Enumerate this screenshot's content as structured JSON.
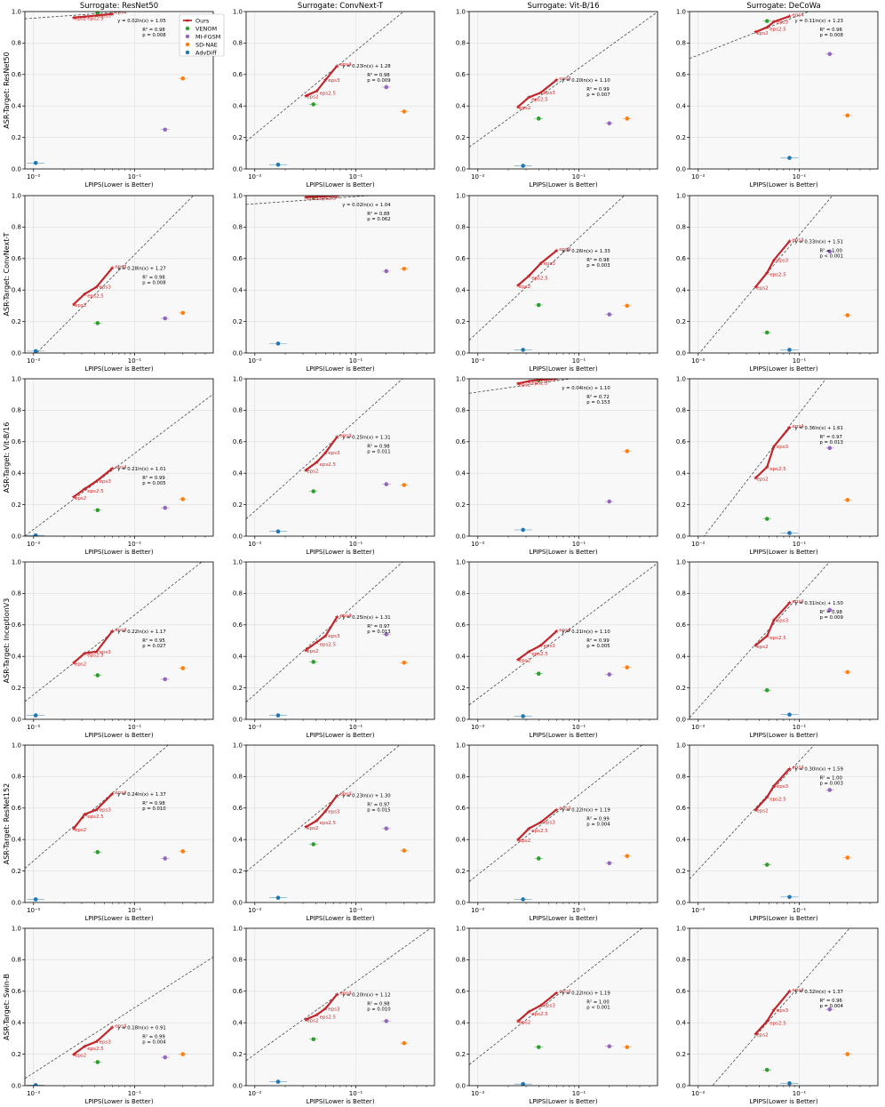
{
  "figure": {
    "xlabel": "LPIPS(Lower is Better)",
    "x_scale": "log",
    "xlim": [
      0.0082,
      0.6
    ],
    "ylim": [
      0,
      1.0
    ],
    "y_ticks": [
      "0.0",
      "0.2",
      "0.4",
      "0.6",
      "0.8",
      "1.0"
    ],
    "x_tick_label": "10⁻²",
    "x_tick_label_2": "10⁻¹",
    "grid": true,
    "legend_location": "top-right of first panel",
    "legend": [
      {
        "name": "Ours",
        "color": "#c0262b",
        "marker": "star-line"
      },
      {
        "name": "VENOM",
        "color": "#2ca02c",
        "marker": "circle"
      },
      {
        "name": "MI-FGSM",
        "color": "#9467bd",
        "marker": "circle"
      },
      {
        "name": "SD-NAE",
        "color": "#ff7f0e",
        "marker": "circle"
      },
      {
        "name": "AdvDiff",
        "color": "#1f77b4",
        "marker": "circle"
      }
    ],
    "column_titles": [
      "Surrogate: ResNet50",
      "Surrogate: ConvNext-T",
      "Surrogate: Vit-B/16",
      "Surrogate: DeCoWa"
    ],
    "row_labels": [
      "ASR-Target: ResNet50",
      "ASR-Target: ConvNext-T",
      "ASR-Target: Vit-B/16",
      "ASR-Target: InceptionV3",
      "ASR-Target: ResNet152",
      "ASR-Target: Swin-B"
    ],
    "eps_labels": [
      "eps2",
      "eps2.5",
      "eps3",
      "eps4"
    ]
  },
  "chart_data": [
    {
      "type": "scatter",
      "row": 0,
      "col": 0,
      "ours_x": [
        0.025,
        0.032,
        0.042,
        0.06
      ],
      "ours_y": [
        0.962,
        0.968,
        0.975,
        0.985
      ],
      "fit": {
        "slope": 0.02,
        "intercept": 1.05,
        "equation": "y = 0.02ln(x) + 1.05",
        "r2": "R² = 0.98",
        "p": "p = 0.008"
      },
      "points": {
        "VENOM": [
          0.043,
          0.99
        ],
        "MI-FGSM": [
          0.2,
          0.25
        ],
        "SD-NAE": [
          0.3,
          0.575
        ],
        "AdvDiff": [
          0.0105,
          0.038
        ]
      }
    },
    {
      "type": "scatter",
      "row": 0,
      "col": 1,
      "ours_x": [
        0.032,
        0.041,
        0.05,
        0.065
      ],
      "ours_y": [
        0.465,
        0.495,
        0.565,
        0.655
      ],
      "fit": {
        "slope": 0.23,
        "intercept": 1.28,
        "equation": "y = 0.23ln(x) + 1.28",
        "r2": "R² = 0.98",
        "p": "p = 0.009"
      },
      "points": {
        "VENOM": [
          0.038,
          0.41
        ],
        "MI-FGSM": [
          0.2,
          0.52
        ],
        "SD-NAE": [
          0.3,
          0.365
        ],
        "AdvDiff": [
          0.017,
          0.027
        ]
      }
    },
    {
      "type": "scatter",
      "row": 0,
      "col": 2,
      "ours_x": [
        0.025,
        0.032,
        0.042,
        0.06
      ],
      "ours_y": [
        0.395,
        0.455,
        0.485,
        0.565
      ],
      "fit": {
        "slope": 0.2,
        "intercept": 1.1,
        "equation": "y = 0.20ln(x) + 1.10",
        "r2": "R² = 0.99",
        "p": "p = 0.007"
      },
      "points": {
        "VENOM": [
          0.04,
          0.32
        ],
        "MI-FGSM": [
          0.2,
          0.29
        ],
        "SD-NAE": [
          0.3,
          0.32
        ],
        "AdvDiff": [
          0.028,
          0.02
        ]
      }
    },
    {
      "type": "scatter",
      "row": 0,
      "col": 3,
      "ours_x": [
        0.037,
        0.048,
        0.056,
        0.08
      ],
      "ours_y": [
        0.87,
        0.9,
        0.935,
        0.97
      ],
      "fit": {
        "slope": 0.11,
        "intercept": 1.23,
        "equation": "y = 0.11ln(x) + 1.23",
        "r2": "R² = 0.96",
        "p": "p = 0.008"
      },
      "points": {
        "VENOM": [
          0.048,
          0.94
        ],
        "MI-FGSM": [
          0.2,
          0.73
        ],
        "SD-NAE": [
          0.3,
          0.34
        ],
        "AdvDiff": [
          0.08,
          0.07
        ]
      }
    },
    {
      "type": "scatter",
      "row": 1,
      "col": 0,
      "ours_x": [
        0.025,
        0.032,
        0.042,
        0.06
      ],
      "ours_y": [
        0.31,
        0.375,
        0.42,
        0.54
      ],
      "fit": {
        "slope": 0.28,
        "intercept": 1.27,
        "equation": "y = 0.28ln(x) + 1.27",
        "r2": "R² = 0.98",
        "p": "p = 0.008"
      },
      "points": {
        "VENOM": [
          0.043,
          0.19
        ],
        "MI-FGSM": [
          0.2,
          0.22
        ],
        "SD-NAE": [
          0.3,
          0.255
        ],
        "AdvDiff": [
          0.0105,
          0.012
        ]
      }
    },
    {
      "type": "scatter",
      "row": 1,
      "col": 1,
      "ours_x": [
        0.032,
        0.041,
        0.05,
        0.065
      ],
      "ours_y": [
        0.99,
        0.993,
        0.996,
        1.0
      ],
      "fit": {
        "slope": 0.02,
        "intercept": 1.04,
        "equation": "y = 0.02ln(x) + 1.04",
        "r2": "R² = 0.88",
        "p": "p = 0.062"
      },
      "points": {
        "VENOM": [
          0.038,
          0.99
        ],
        "MI-FGSM": [
          0.2,
          0.52
        ],
        "SD-NAE": [
          0.3,
          0.535
        ],
        "AdvDiff": [
          0.017,
          0.06
        ]
      }
    },
    {
      "type": "scatter",
      "row": 1,
      "col": 2,
      "ours_x": [
        0.025,
        0.032,
        0.042,
        0.06
      ],
      "ours_y": [
        0.43,
        0.49,
        0.57,
        0.65
      ],
      "fit": {
        "slope": 0.26,
        "intercept": 1.33,
        "equation": "y = 0.26ln(x) + 1.33",
        "r2": "R² = 0.98",
        "p": "p = 0.003"
      },
      "points": {
        "VENOM": [
          0.04,
          0.305
        ],
        "MI-FGSM": [
          0.2,
          0.245
        ],
        "SD-NAE": [
          0.3,
          0.3
        ],
        "AdvDiff": [
          0.028,
          0.02
        ]
      }
    },
    {
      "type": "scatter",
      "row": 1,
      "col": 3,
      "ours_x": [
        0.037,
        0.048,
        0.056,
        0.08
      ],
      "ours_y": [
        0.42,
        0.51,
        0.59,
        0.71
      ],
      "fit": {
        "slope": 0.33,
        "intercept": 1.51,
        "equation": "y = 0.33ln(x) + 1.51",
        "r2": "R² = 1.00",
        "p": "p < 0.001"
      },
      "points": {
        "VENOM": [
          0.048,
          0.13
        ],
        "MI-FGSM": [
          0.2,
          0.645
        ],
        "SD-NAE": [
          0.3,
          0.24
        ],
        "AdvDiff": [
          0.08,
          0.02
        ]
      }
    },
    {
      "type": "scatter",
      "row": 2,
      "col": 0,
      "ours_x": [
        0.025,
        0.032,
        0.042,
        0.06
      ],
      "ours_y": [
        0.25,
        0.3,
        0.35,
        0.43
      ],
      "fit": {
        "slope": 0.21,
        "intercept": 1.01,
        "equation": "y = 0.21ln(x) + 1.01",
        "r2": "R² = 0.99",
        "p": "p = 0.005"
      },
      "points": {
        "VENOM": [
          0.043,
          0.165
        ],
        "MI-FGSM": [
          0.2,
          0.18
        ],
        "SD-NAE": [
          0.3,
          0.235
        ],
        "AdvDiff": [
          0.0105,
          0.005
        ]
      }
    },
    {
      "type": "scatter",
      "row": 2,
      "col": 1,
      "ours_x": [
        0.032,
        0.041,
        0.05,
        0.065
      ],
      "ours_y": [
        0.42,
        0.47,
        0.53,
        0.63
      ],
      "fit": {
        "slope": 0.25,
        "intercept": 1.31,
        "equation": "y = 0.25ln(x) + 1.31",
        "r2": "R² = 0.98",
        "p": "p = 0.011"
      },
      "points": {
        "VENOM": [
          0.038,
          0.285
        ],
        "MI-FGSM": [
          0.2,
          0.33
        ],
        "SD-NAE": [
          0.3,
          0.325
        ],
        "AdvDiff": [
          0.017,
          0.03
        ]
      }
    },
    {
      "type": "scatter",
      "row": 2,
      "col": 2,
      "ours_x": [
        0.025,
        0.032,
        0.042,
        0.06
      ],
      "ours_y": [
        0.97,
        0.985,
        0.995,
        1.0
      ],
      "fit": {
        "slope": 0.04,
        "intercept": 1.1,
        "equation": "y = 0.04ln(x) + 1.10",
        "r2": "R² = 0.72",
        "p": "p = 0.153"
      },
      "points": {
        "VENOM": [
          0.04,
          0.99
        ],
        "MI-FGSM": [
          0.2,
          0.22
        ],
        "SD-NAE": [
          0.3,
          0.54
        ],
        "AdvDiff": [
          0.028,
          0.04
        ]
      }
    },
    {
      "type": "scatter",
      "row": 2,
      "col": 3,
      "ours_x": [
        0.037,
        0.048,
        0.056,
        0.08
      ],
      "ours_y": [
        0.37,
        0.44,
        0.57,
        0.69
      ],
      "fit": {
        "slope": 0.36,
        "intercept": 1.61,
        "equation": "y = 0.36ln(x) + 1.61",
        "r2": "R² = 0.97",
        "p": "p = 0.013"
      },
      "points": {
        "VENOM": [
          0.048,
          0.11
        ],
        "MI-FGSM": [
          0.2,
          0.56
        ],
        "SD-NAE": [
          0.3,
          0.23
        ],
        "AdvDiff": [
          0.08,
          0.02
        ]
      }
    },
    {
      "type": "scatter",
      "row": 3,
      "col": 0,
      "ours_x": [
        0.025,
        0.032,
        0.042,
        0.06
      ],
      "ours_y": [
        0.36,
        0.42,
        0.43,
        0.56
      ],
      "fit": {
        "slope": 0.22,
        "intercept": 1.17,
        "equation": "y = 0.22ln(x) + 1.17",
        "r2": "R² = 0.95",
        "p": "p = 0.027"
      },
      "points": {
        "VENOM": [
          0.043,
          0.28
        ],
        "MI-FGSM": [
          0.2,
          0.255
        ],
        "SD-NAE": [
          0.3,
          0.325
        ],
        "AdvDiff": [
          0.0105,
          0.025
        ]
      }
    },
    {
      "type": "scatter",
      "row": 3,
      "col": 1,
      "ours_x": [
        0.032,
        0.041,
        0.05,
        0.065
      ],
      "ours_y": [
        0.44,
        0.49,
        0.53,
        0.65
      ],
      "fit": {
        "slope": 0.25,
        "intercept": 1.31,
        "equation": "y = 0.25ln(x) + 1.31",
        "r2": "R² = 0.97",
        "p": "p = 0.013"
      },
      "points": {
        "VENOM": [
          0.038,
          0.365
        ],
        "MI-FGSM": [
          0.2,
          0.54
        ],
        "SD-NAE": [
          0.3,
          0.36
        ],
        "AdvDiff": [
          0.017,
          0.025
        ]
      }
    },
    {
      "type": "scatter",
      "row": 3,
      "col": 2,
      "ours_x": [
        0.025,
        0.032,
        0.042,
        0.06
      ],
      "ours_y": [
        0.38,
        0.43,
        0.47,
        0.56
      ],
      "fit": {
        "slope": 0.21,
        "intercept": 1.1,
        "equation": "y = 0.21ln(x) + 1.10",
        "r2": "R² = 0.99",
        "p": "p = 0.005"
      },
      "points": {
        "VENOM": [
          0.04,
          0.29
        ],
        "MI-FGSM": [
          0.2,
          0.285
        ],
        "SD-NAE": [
          0.3,
          0.33
        ],
        "AdvDiff": [
          0.028,
          0.02
        ]
      }
    },
    {
      "type": "scatter",
      "row": 3,
      "col": 3,
      "ours_x": [
        0.037,
        0.048,
        0.056,
        0.08
      ],
      "ours_y": [
        0.47,
        0.53,
        0.63,
        0.74
      ],
      "fit": {
        "slope": 0.31,
        "intercept": 1.5,
        "equation": "y = 0.31ln(x) + 1.50",
        "r2": "R² = 0.98",
        "p": "p = 0.009"
      },
      "points": {
        "VENOM": [
          0.048,
          0.185
        ],
        "MI-FGSM": [
          0.2,
          0.695
        ],
        "SD-NAE": [
          0.3,
          0.3
        ],
        "AdvDiff": [
          0.08,
          0.03
        ]
      }
    },
    {
      "type": "scatter",
      "row": 4,
      "col": 0,
      "ours_x": [
        0.025,
        0.032,
        0.042,
        0.06
      ],
      "ours_y": [
        0.47,
        0.56,
        0.59,
        0.69
      ],
      "fit": {
        "slope": 0.24,
        "intercept": 1.37,
        "equation": "y = 0.24ln(x) + 1.37",
        "r2": "R² = 0.98",
        "p": "p = 0.010"
      },
      "points": {
        "VENOM": [
          0.043,
          0.32
        ],
        "MI-FGSM": [
          0.2,
          0.28
        ],
        "SD-NAE": [
          0.3,
          0.325
        ],
        "AdvDiff": [
          0.0105,
          0.02
        ]
      }
    },
    {
      "type": "scatter",
      "row": 4,
      "col": 1,
      "ours_x": [
        0.032,
        0.041,
        0.05,
        0.065
      ],
      "ours_y": [
        0.48,
        0.52,
        0.58,
        0.68
      ],
      "fit": {
        "slope": 0.23,
        "intercept": 1.3,
        "equation": "y = 0.23ln(x) + 1.30",
        "r2": "R² = 0.97",
        "p": "p = 0.015"
      },
      "points": {
        "VENOM": [
          0.038,
          0.37
        ],
        "MI-FGSM": [
          0.2,
          0.47
        ],
        "SD-NAE": [
          0.3,
          0.33
        ],
        "AdvDiff": [
          0.017,
          0.03
        ]
      }
    },
    {
      "type": "scatter",
      "row": 4,
      "col": 2,
      "ours_x": [
        0.025,
        0.032,
        0.042,
        0.06
      ],
      "ours_y": [
        0.4,
        0.47,
        0.51,
        0.59
      ],
      "fit": {
        "slope": 0.22,
        "intercept": 1.19,
        "equation": "y = 0.22ln(x) + 1.19",
        "r2": "R² = 0.99",
        "p": "p = 0.004"
      },
      "points": {
        "VENOM": [
          0.04,
          0.28
        ],
        "MI-FGSM": [
          0.2,
          0.25
        ],
        "SD-NAE": [
          0.3,
          0.295
        ],
        "AdvDiff": [
          0.028,
          0.02
        ]
      }
    },
    {
      "type": "scatter",
      "row": 4,
      "col": 3,
      "ours_x": [
        0.037,
        0.048,
        0.056,
        0.08
      ],
      "ours_y": [
        0.59,
        0.67,
        0.74,
        0.85
      ],
      "fit": {
        "slope": 0.3,
        "intercept": 1.59,
        "equation": "y = 0.30ln(x) + 1.59",
        "r2": "R² = 1.00",
        "p": "p = 0.003"
      },
      "points": {
        "VENOM": [
          0.048,
          0.24
        ],
        "MI-FGSM": [
          0.2,
          0.715
        ],
        "SD-NAE": [
          0.3,
          0.285
        ],
        "AdvDiff": [
          0.08,
          0.035
        ]
      }
    },
    {
      "type": "scatter",
      "row": 5,
      "col": 0,
      "ours_x": [
        0.025,
        0.032,
        0.042,
        0.06
      ],
      "ours_y": [
        0.2,
        0.25,
        0.28,
        0.37
      ],
      "fit": {
        "slope": 0.18,
        "intercept": 0.91,
        "equation": "y = 0.18ln(x) + 0.91",
        "r2": "R² = 0.99",
        "p": "p = 0.004"
      },
      "points": {
        "VENOM": [
          0.043,
          0.15
        ],
        "MI-FGSM": [
          0.2,
          0.18
        ],
        "SD-NAE": [
          0.3,
          0.2
        ],
        "AdvDiff": [
          0.0105,
          0.003
        ]
      }
    },
    {
      "type": "scatter",
      "row": 5,
      "col": 1,
      "ours_x": [
        0.032,
        0.041,
        0.05,
        0.065
      ],
      "ours_y": [
        0.42,
        0.45,
        0.49,
        0.58
      ],
      "fit": {
        "slope": 0.2,
        "intercept": 1.12,
        "equation": "y = 0.20ln(x) + 1.12",
        "r2": "R² = 0.98",
        "p": "p = 0.010"
      },
      "points": {
        "VENOM": [
          0.038,
          0.295
        ],
        "MI-FGSM": [
          0.2,
          0.41
        ],
        "SD-NAE": [
          0.3,
          0.27
        ],
        "AdvDiff": [
          0.017,
          0.025
        ]
      }
    },
    {
      "type": "scatter",
      "row": 5,
      "col": 2,
      "ours_x": [
        0.025,
        0.032,
        0.042,
        0.06
      ],
      "ours_y": [
        0.41,
        0.47,
        0.51,
        0.59
      ],
      "fit": {
        "slope": 0.22,
        "intercept": 1.19,
        "equation": "y = 0.22ln(x) + 1.19",
        "r2": "R² = 1.00",
        "p": "p < 0.001"
      },
      "points": {
        "VENOM": [
          0.04,
          0.245
        ],
        "MI-FGSM": [
          0.2,
          0.25
        ],
        "SD-NAE": [
          0.3,
          0.245
        ],
        "AdvDiff": [
          0.028,
          0.01
        ]
      }
    },
    {
      "type": "scatter",
      "row": 5,
      "col": 3,
      "ours_x": [
        0.037,
        0.048,
        0.056,
        0.08
      ],
      "ours_y": [
        0.33,
        0.41,
        0.48,
        0.6
      ],
      "fit": {
        "slope": 0.32,
        "intercept": 1.37,
        "equation": "y = 0.32ln(x) + 1.37",
        "r2": "R² = 0.96",
        "p": "p = 0.004"
      },
      "points": {
        "VENOM": [
          0.048,
          0.1
        ],
        "MI-FGSM": [
          0.2,
          0.485
        ],
        "SD-NAE": [
          0.3,
          0.2
        ],
        "AdvDiff": [
          0.08,
          0.015
        ]
      }
    }
  ]
}
